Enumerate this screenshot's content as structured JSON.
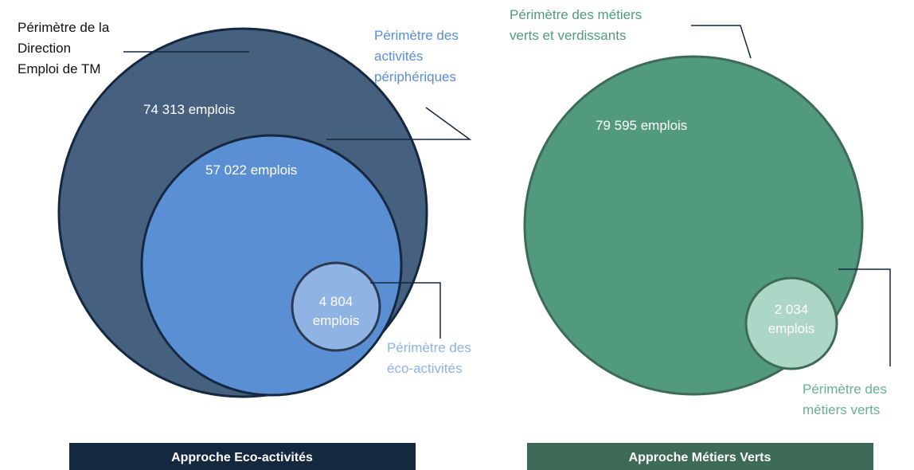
{
  "left": {
    "outer": {
      "label": [
        "Périmètre de la",
        "Direction",
        "Emploi de TM"
      ],
      "count": "74 313 emplois"
    },
    "middle": {
      "label": [
        "Périmètre des",
        "activités",
        "périphériques"
      ],
      "count": "57 022 emplois"
    },
    "inner": {
      "label": [
        "Périmètre des",
        "éco-activités"
      ],
      "count": [
        "4 804",
        "emplois"
      ]
    },
    "banner": "Approche Eco-activités"
  },
  "right": {
    "outer": {
      "label": [
        "Périmètre des métiers",
        "verts et verdissants"
      ],
      "count": "79 595 emplois"
    },
    "inner": {
      "label": [
        "Périmètre des",
        "métiers verts"
      ],
      "count": [
        "2 034",
        "emplois"
      ]
    },
    "banner": "Approche Métiers Verts"
  }
}
